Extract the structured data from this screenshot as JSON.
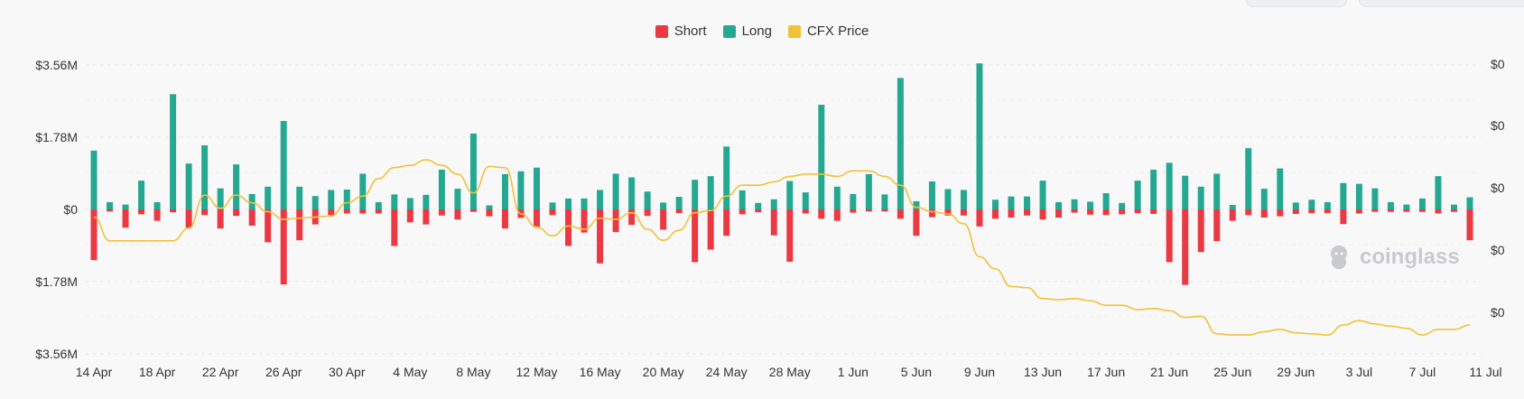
{
  "legend": {
    "short_label": "Short",
    "long_label": "Long",
    "price_label": "CFX Price"
  },
  "colors": {
    "short": "#ea3943",
    "long": "#25a891",
    "price": "#f0c237"
  },
  "watermark": {
    "text": "coinglass",
    "icon": "coinglass-logo-icon"
  },
  "chart_data": {
    "type": "bar",
    "title": "",
    "xlabel": "",
    "ylabel": "",
    "ylim": [
      -3560000,
      3560000
    ],
    "left_ticks": [
      "$3.56M",
      "$1.78M",
      "$0",
      "$1.78M",
      "$3.56M"
    ],
    "left_tick_values": [
      3560000,
      1780000,
      0,
      -1780000,
      -3560000
    ],
    "right_ticks": [
      "$0",
      "$0",
      "$0",
      "$0",
      "$0"
    ],
    "x_tick_labels": [
      "14 Apr",
      "18 Apr",
      "22 Apr",
      "26 Apr",
      "30 Apr",
      "4 May",
      "8 May",
      "12 May",
      "16 May",
      "20 May",
      "24 May",
      "28 May",
      "1 Jun",
      "5 Jun",
      "9 Jun",
      "13 Jun",
      "17 Jun",
      "21 Jun",
      "25 Jun",
      "29 Jun",
      "3 Jul",
      "7 Jul",
      "11 Jul"
    ],
    "start_date": "2024-04-14",
    "series": [
      {
        "name": "Long",
        "values": [
          1450000,
          180000,
          120000,
          710000,
          180000,
          2840000,
          1130000,
          1580000,
          520000,
          1110000,
          380000,
          560000,
          2180000,
          560000,
          330000,
          480000,
          490000,
          880000,
          180000,
          370000,
          280000,
          360000,
          980000,
          510000,
          1870000,
          100000,
          870000,
          940000,
          1030000,
          170000,
          270000,
          270000,
          480000,
          880000,
          790000,
          440000,
          170000,
          310000,
          730000,
          820000,
          1550000,
          470000,
          160000,
          250000,
          700000,
          420000,
          2580000,
          560000,
          380000,
          870000,
          370000,
          3240000,
          200000,
          690000,
          500000,
          480000,
          3600000,
          240000,
          320000,
          320000,
          710000,
          180000,
          250000,
          190000,
          400000,
          160000,
          710000,
          980000,
          1150000,
          830000,
          560000,
          880000,
          110000,
          1510000,
          510000,
          1010000,
          170000,
          240000,
          180000,
          650000,
          630000,
          520000,
          180000,
          120000,
          270000,
          820000,
          120000,
          300000
        ]
      },
      {
        "name": "Short",
        "values": [
          -1250000,
          -50000,
          -450000,
          -120000,
          -280000,
          -70000,
          -450000,
          -140000,
          -470000,
          -160000,
          -400000,
          -810000,
          -1850000,
          -760000,
          -370000,
          -140000,
          -100000,
          -100000,
          -100000,
          -900000,
          -320000,
          -370000,
          -150000,
          -250000,
          -60000,
          -170000,
          -470000,
          -210000,
          -450000,
          -140000,
          -900000,
          -570000,
          -1330000,
          -560000,
          -380000,
          -160000,
          -500000,
          -90000,
          -1300000,
          -990000,
          -650000,
          -120000,
          -70000,
          -640000,
          -1290000,
          -100000,
          -230000,
          -280000,
          -80000,
          -50000,
          -50000,
          -230000,
          -650000,
          -190000,
          -150000,
          -150000,
          -420000,
          -230000,
          -200000,
          -150000,
          -250000,
          -200000,
          -80000,
          -130000,
          -140000,
          -120000,
          -90000,
          -110000,
          -1300000,
          -1860000,
          -1050000,
          -780000,
          -280000,
          -140000,
          -200000,
          -170000,
          -110000,
          -90000,
          -90000,
          -360000,
          -100000,
          -60000,
          -60000,
          -60000,
          -60000,
          -100000,
          -60000,
          -760000
        ]
      },
      {
        "name": "CFX Price",
        "axis": "right",
        "values": [
          -0.7,
          -2.85,
          -2.85,
          -2.85,
          -2.85,
          -2.85,
          -1.7,
          1.3,
          0.1,
          1.3,
          0.6,
          -0.2,
          -0.9,
          -0.8,
          -0.7,
          -0.6,
          0.6,
          1.2,
          2.8,
          3.8,
          4.0,
          4.5,
          4.0,
          3.2,
          1.5,
          3.9,
          3.8,
          -0.4,
          -1.6,
          -2.4,
          -1.5,
          -1.8,
          -0.8,
          -0.9,
          -0.3,
          -1.8,
          -2.8,
          -1.9,
          -0.3,
          -0.1,
          1.2,
          2.2,
          2.2,
          2.5,
          3.0,
          3.2,
          3.2,
          3.0,
          3.5,
          3.5,
          3.0,
          2.2,
          0.2,
          -0.2,
          -0.4,
          -1.3,
          -4.3,
          -5.4,
          -7.0,
          -7.1,
          -8.1,
          -8.2,
          -8.1,
          -8.3,
          -8.7,
          -8.7,
          -9.1,
          -9.0,
          -9.2,
          -9.8,
          -9.7,
          -11.3,
          -11.4,
          -11.4,
          -11.1,
          -10.9,
          -11.2,
          -11.3,
          -11.4,
          -10.5,
          -10.1,
          -10.4,
          -10.6,
          -10.8,
          -11.4,
          -10.9,
          -10.9,
          -10.5
        ]
      }
    ]
  }
}
